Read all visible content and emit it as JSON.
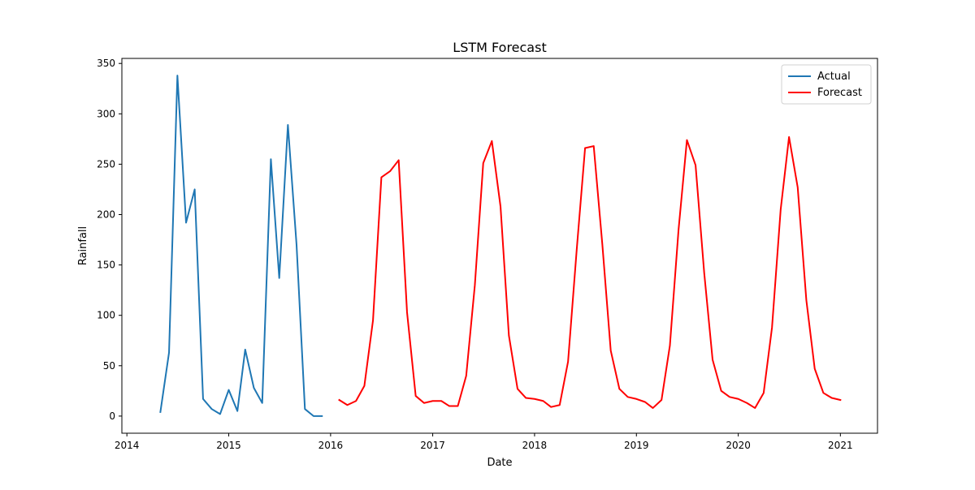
{
  "chart_data": {
    "type": "line",
    "title": "LSTM Forecast",
    "xlabel": "Date",
    "ylabel": "Rainfall",
    "x_axis_type": "date",
    "xlim": [
      "2013-12-14",
      "2021-05-14"
    ],
    "ylim": [
      -17,
      355
    ],
    "x_ticks": [
      {
        "date": "2014-01-01",
        "label": "2014"
      },
      {
        "date": "2015-01-01",
        "label": "2015"
      },
      {
        "date": "2016-01-01",
        "label": "2016"
      },
      {
        "date": "2017-01-01",
        "label": "2017"
      },
      {
        "date": "2018-01-01",
        "label": "2018"
      },
      {
        "date": "2019-01-01",
        "label": "2019"
      },
      {
        "date": "2020-01-01",
        "label": "2020"
      },
      {
        "date": "2021-01-01",
        "label": "2021"
      }
    ],
    "y_ticks": [
      0,
      50,
      100,
      150,
      200,
      250,
      300,
      350
    ],
    "grid": false,
    "legend_position": "top-right",
    "series": [
      {
        "name": "Actual",
        "color": "#1f77b4",
        "x": [
          "2014-05-01",
          "2014-06-01",
          "2014-07-01",
          "2014-08-01",
          "2014-09-01",
          "2014-10-01",
          "2014-11-01",
          "2014-12-01",
          "2015-01-01",
          "2015-02-01",
          "2015-03-01",
          "2015-04-01",
          "2015-05-01",
          "2015-06-01",
          "2015-07-01",
          "2015-08-01",
          "2015-09-01",
          "2015-10-01",
          "2015-11-01",
          "2015-12-01"
        ],
        "values": [
          4,
          63,
          338,
          192,
          225,
          17,
          7,
          2,
          26,
          5,
          66,
          28,
          13,
          255,
          137,
          289,
          170,
          7,
          0,
          0
        ]
      },
      {
        "name": "Forecast",
        "color": "#ff0000",
        "x": [
          "2016-02-01",
          "2016-03-01",
          "2016-04-01",
          "2016-05-01",
          "2016-06-01",
          "2016-07-01",
          "2016-08-01",
          "2016-09-01",
          "2016-10-01",
          "2016-11-01",
          "2016-12-01",
          "2017-01-01",
          "2017-02-01",
          "2017-03-01",
          "2017-04-01",
          "2017-05-01",
          "2017-06-01",
          "2017-07-01",
          "2017-08-01",
          "2017-09-01",
          "2017-10-01",
          "2017-11-01",
          "2017-12-01",
          "2018-01-01",
          "2018-02-01",
          "2018-03-01",
          "2018-04-01",
          "2018-05-01",
          "2018-06-01",
          "2018-07-01",
          "2018-08-01",
          "2018-09-01",
          "2018-10-01",
          "2018-11-01",
          "2018-12-01",
          "2019-01-01",
          "2019-02-01",
          "2019-03-01",
          "2019-04-01",
          "2019-05-01",
          "2019-06-01",
          "2019-07-01",
          "2019-08-01",
          "2019-09-01",
          "2019-10-01",
          "2019-11-01",
          "2019-12-01",
          "2020-01-01",
          "2020-02-01",
          "2020-03-01",
          "2020-04-01",
          "2020-05-01",
          "2020-06-01",
          "2020-07-01",
          "2020-08-01",
          "2020-09-01",
          "2020-10-01",
          "2020-11-01",
          "2020-12-01",
          "2021-01-01"
        ],
        "values": [
          16,
          11,
          15,
          30,
          95,
          237,
          243,
          254,
          103,
          20,
          13,
          15,
          15,
          10,
          10,
          40,
          130,
          251,
          273,
          208,
          80,
          27,
          18,
          17,
          15,
          9,
          11,
          54,
          165,
          266,
          268,
          170,
          65,
          27,
          19,
          17,
          14,
          8,
          16,
          70,
          185,
          274,
          249,
          142,
          56,
          25,
          19,
          17,
          13,
          8,
          23,
          88,
          205,
          277,
          227,
          115,
          47,
          23,
          18,
          16
        ]
      }
    ]
  }
}
